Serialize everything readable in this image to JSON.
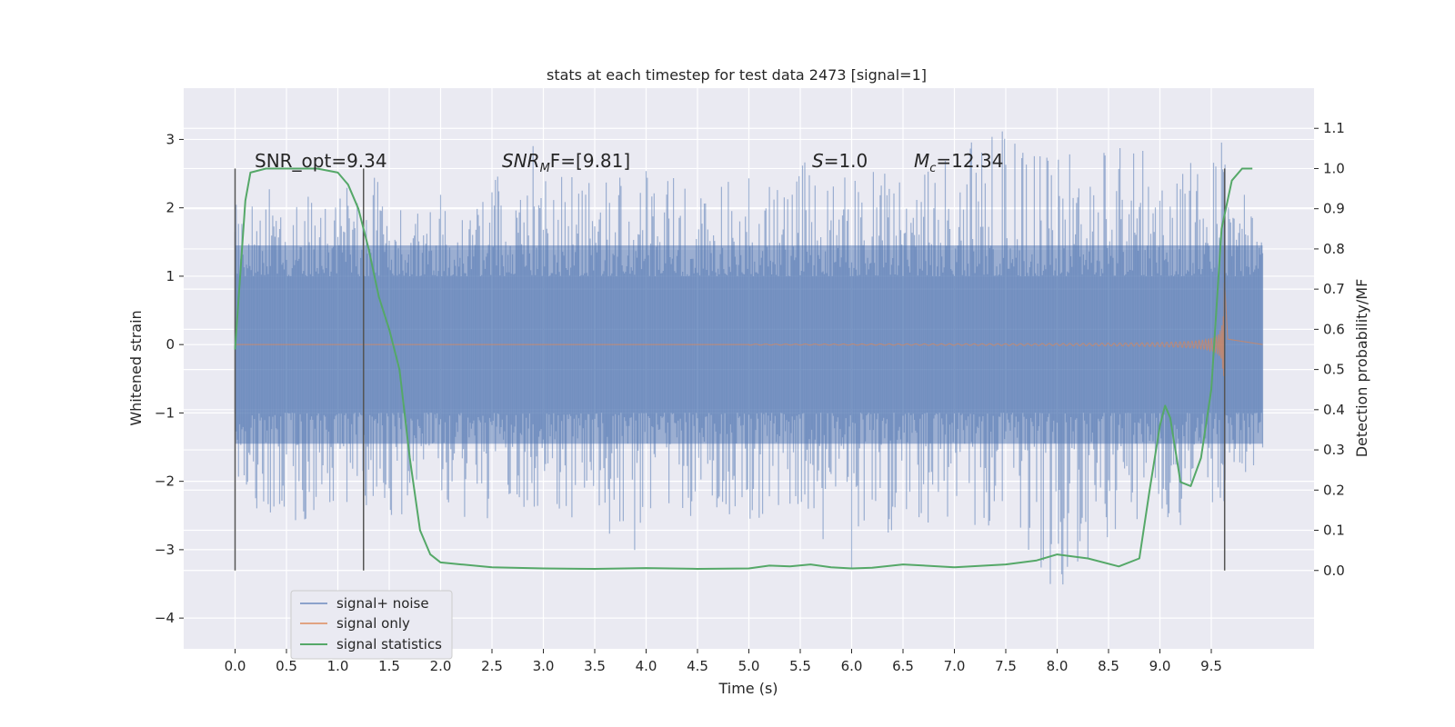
{
  "chart_data": {
    "type": "line",
    "title": "stats at each timestep for test data 2473 [signal=1]",
    "xlabel": "Time (s)",
    "ylabel": "Whitened strain",
    "ylabel_right": "Detection probability/MF",
    "xlim": [
      -0.5,
      10.5
    ],
    "ylim": [
      -4.45,
      3.75
    ],
    "ylim_right": [
      -0.195,
      1.2
    ],
    "x_ticks": [
      "0.0",
      "0.5",
      "1.0",
      "1.5",
      "2.0",
      "2.5",
      "3.0",
      "3.5",
      "4.0",
      "4.5",
      "5.0",
      "5.5",
      "6.0",
      "6.5",
      "7.0",
      "7.5",
      "8.0",
      "8.5",
      "9.0",
      "9.5"
    ],
    "y_ticks": [
      "3",
      "2",
      "1",
      "0",
      "−1",
      "−2",
      "−3",
      "−4"
    ],
    "y_right_ticks": [
      "1.1",
      "1.0",
      "0.9",
      "0.8",
      "0.7",
      "0.6",
      "0.5",
      "0.4",
      "0.3",
      "0.2",
      "0.1",
      "0.0"
    ],
    "grid": true,
    "legend_position": "lower-left",
    "annotations": {
      "snr_opt": "SNR_opt=9.34",
      "snr_mf_prefix": "SNR",
      "snr_mf_sub": "M",
      "snr_mf_suffix": "F=[9.81]",
      "s_var": "S",
      "s_val": "=1.0",
      "mc_var": "M",
      "mc_sub": "c",
      "mc_val": "=12.34"
    },
    "vertical_lines_x": [
      0.0,
      1.25,
      9.63
    ],
    "series": [
      {
        "name": "signal+ noise",
        "color": "#4c72b0",
        "description_level": "noise band",
        "envelope_x": [
          0.0,
          0.5,
          1.0,
          1.5,
          2.0,
          2.5,
          3.0,
          3.5,
          4.0,
          4.5,
          5.0,
          5.5,
          6.0,
          6.5,
          7.0,
          7.5,
          8.0,
          8.5,
          9.0,
          9.5,
          10.0
        ],
        "envelope_max": [
          2.1,
          2.4,
          2.3,
          2.6,
          2.2,
          2.5,
          3.3,
          2.4,
          2.6,
          2.3,
          2.5,
          2.7,
          2.5,
          2.6,
          2.9,
          3.2,
          2.7,
          3.4,
          2.6,
          3.2,
          2.0
        ],
        "envelope_min": [
          -2.2,
          -2.7,
          -2.3,
          -2.5,
          -2.6,
          -2.6,
          -2.4,
          -2.7,
          -3.1,
          -2.5,
          -2.6,
          -2.5,
          -3.5,
          -2.6,
          -2.8,
          -2.6,
          -4.0,
          -3.1,
          -2.7,
          -2.6,
          -1.7
        ]
      },
      {
        "name": "signal only",
        "color": "#dd8452",
        "chirp_start": 5.0,
        "chirp_end": 9.63,
        "peak_amplitude": 1.1
      },
      {
        "name": "signal statistics",
        "color": "#55a868",
        "axis": "right",
        "x": [
          0.0,
          0.1,
          0.15,
          0.3,
          0.5,
          0.8,
          1.0,
          1.1,
          1.2,
          1.3,
          1.4,
          1.5,
          1.6,
          1.7,
          1.8,
          1.9,
          2.0,
          2.2,
          2.5,
          3.0,
          3.5,
          4.0,
          4.5,
          5.0,
          5.2,
          5.4,
          5.6,
          5.8,
          6.0,
          6.2,
          6.5,
          7.0,
          7.5,
          7.8,
          8.0,
          8.3,
          8.6,
          8.8,
          8.9,
          9.0,
          9.05,
          9.1,
          9.15,
          9.2,
          9.3,
          9.4,
          9.5,
          9.6,
          9.7,
          9.8,
          9.9
        ],
        "y": [
          0.55,
          0.92,
          0.99,
          1.0,
          1.0,
          1.0,
          0.99,
          0.96,
          0.9,
          0.8,
          0.68,
          0.6,
          0.5,
          0.28,
          0.1,
          0.04,
          0.02,
          0.015,
          0.008,
          0.005,
          0.004,
          0.006,
          0.004,
          0.005,
          0.012,
          0.01,
          0.015,
          0.008,
          0.005,
          0.007,
          0.015,
          0.008,
          0.015,
          0.025,
          0.04,
          0.03,
          0.01,
          0.03,
          0.2,
          0.36,
          0.41,
          0.38,
          0.3,
          0.22,
          0.21,
          0.28,
          0.45,
          0.85,
          0.97,
          1.0,
          1.0
        ]
      }
    ]
  }
}
